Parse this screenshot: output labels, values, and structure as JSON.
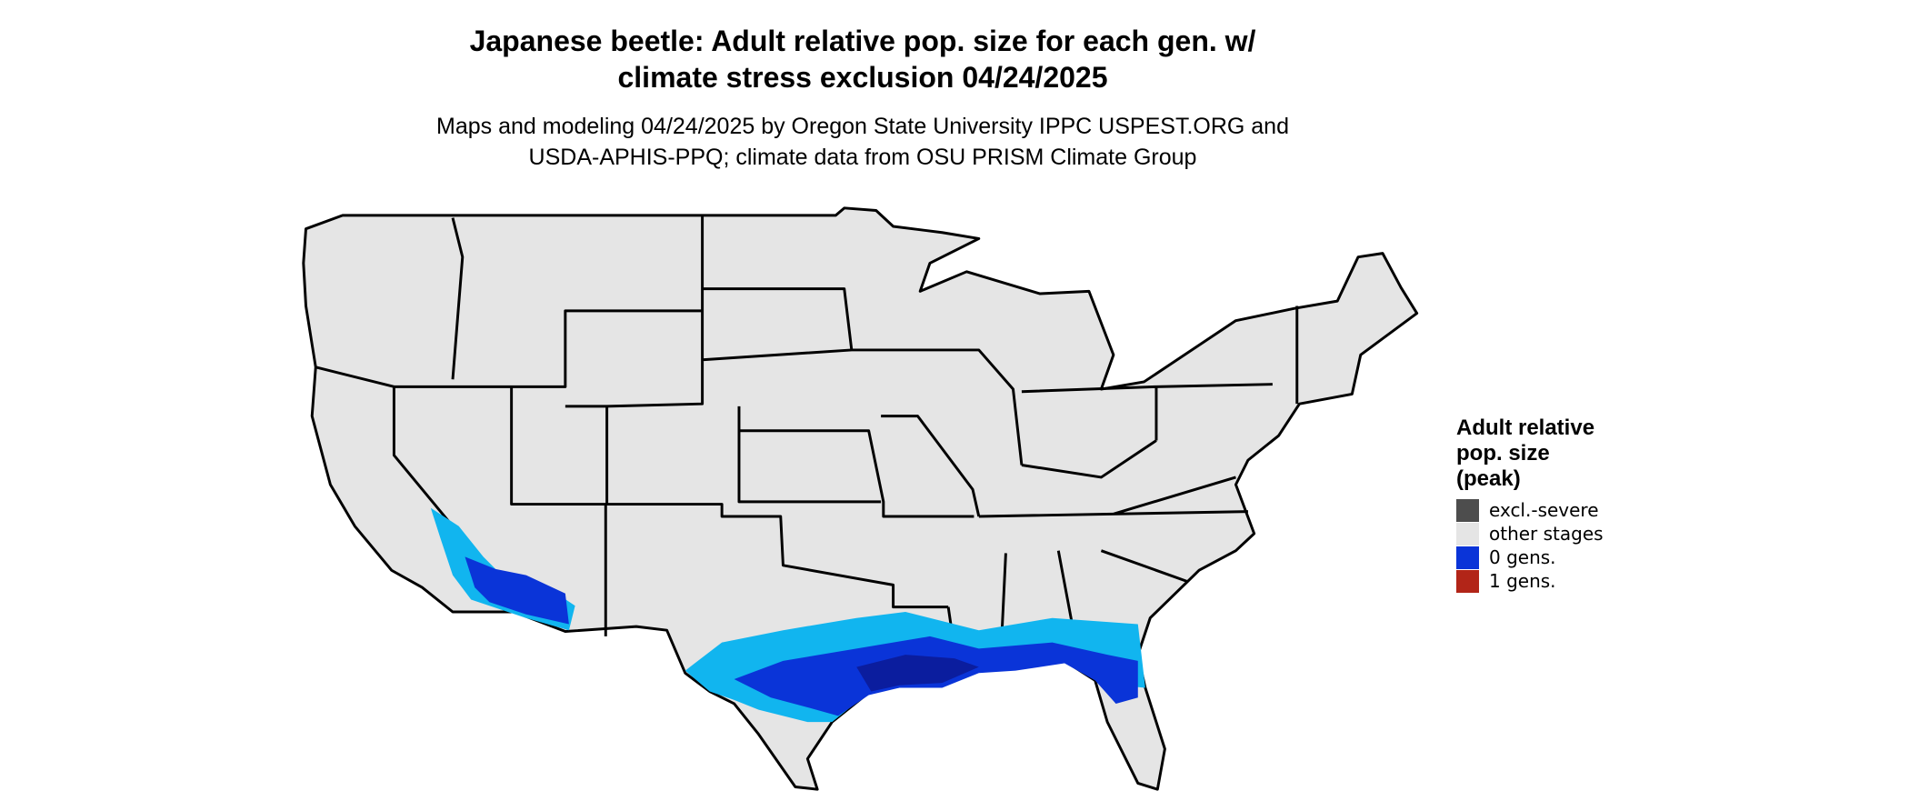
{
  "title": [
    "Japanese beetle: Adult relative pop. size for each gen. w/",
    "climate stress exclusion 04/24/2025"
  ],
  "subtitle": [
    "Maps and modeling 04/24/2025 by Oregon State University IPPC USPEST.ORG and",
    "USDA-APHIS-PPQ; climate data from OSU PRISM Climate Group"
  ],
  "legend": {
    "title": [
      "Adult relative",
      "pop. size",
      "(peak)"
    ],
    "items": [
      {
        "label": "excl.-severe",
        "color": "#4d4d4d"
      },
      {
        "label": "other stages",
        "color": "#e5e5e5"
      },
      {
        "label": "0 gens.",
        "color": "#0a34d8"
      },
      {
        "label": "1 gens.",
        "color": "#b22518"
      }
    ]
  }
}
